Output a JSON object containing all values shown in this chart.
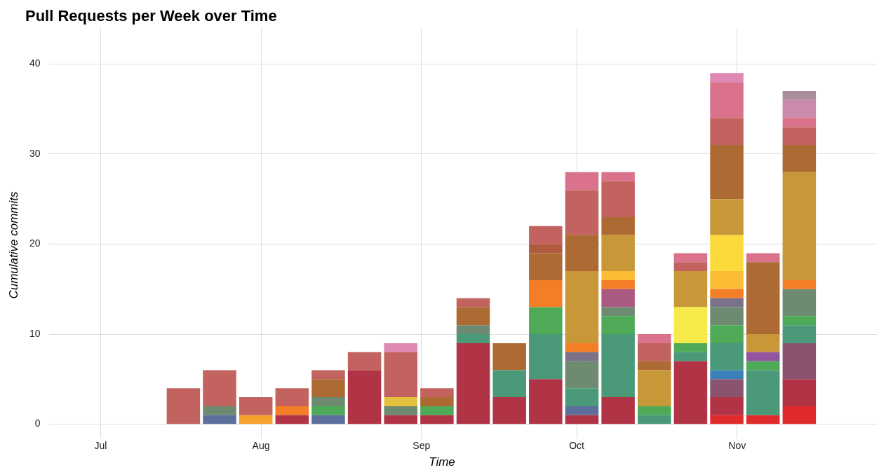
{
  "chart_data": {
    "type": "bar",
    "stacked": true,
    "title": "Pull Requests per Week over Time",
    "xlabel": "Time",
    "ylabel": "Cumulative commits",
    "x": [
      "--07-17",
      "--07-24",
      "--07-31",
      "--08-07",
      "--08-14",
      "--08-21",
      "--08-28",
      "--09-04",
      "--09-11",
      "--09-18",
      "--09-25",
      "--10-02",
      "--10-09",
      "--10-16",
      "--10-23",
      "--10-30",
      "--11-06",
      "--11-13"
    ],
    "xlim": [
      "--06-21",
      "--11-28"
    ],
    "xticks": [
      {
        "value": "--07-01",
        "label": "Jul"
      },
      {
        "value": "--08-01",
        "label": "Aug"
      },
      {
        "value": "--09-01",
        "label": "Sep"
      },
      {
        "value": "--10-01",
        "label": "Oct"
      },
      {
        "value": "--11-01",
        "label": "Nov"
      }
    ],
    "ylim": [
      -1.6,
      44
    ],
    "yticks": [
      0,
      10,
      20,
      30,
      40
    ],
    "grid": true,
    "legend": false,
    "series": [
      {
        "color": "#e02a2c",
        "values": [
          null,
          null,
          null,
          null,
          null,
          null,
          null,
          null,
          null,
          null,
          null,
          null,
          null,
          null,
          null,
          1,
          1,
          2
        ]
      },
      {
        "color": "#b03346",
        "values": [
          null,
          null,
          null,
          1,
          null,
          6,
          1,
          1,
          9,
          3,
          5,
          1,
          3,
          null,
          7,
          2,
          null,
          3
        ]
      },
      {
        "color": "#8a5370",
        "values": [
          null,
          null,
          null,
          null,
          null,
          null,
          null,
          null,
          null,
          null,
          null,
          null,
          null,
          null,
          null,
          2,
          null,
          4
        ]
      },
      {
        "color": "#5b6e9c",
        "values": [
          null,
          1,
          null,
          null,
          1,
          null,
          null,
          null,
          null,
          null,
          null,
          1,
          null,
          null,
          null,
          null,
          null,
          null
        ]
      },
      {
        "color": "#3a80b8",
        "values": [
          null,
          null,
          null,
          null,
          null,
          null,
          null,
          null,
          null,
          null,
          null,
          null,
          null,
          null,
          null,
          1,
          null,
          null
        ]
      },
      {
        "color": "#4a9a7a",
        "values": [
          null,
          null,
          null,
          null,
          null,
          null,
          null,
          null,
          1,
          3,
          5,
          2,
          7,
          1,
          1,
          3,
          5,
          2
        ]
      },
      {
        "color": "#4faa57",
        "values": [
          null,
          null,
          null,
          null,
          1,
          null,
          null,
          1,
          null,
          null,
          3,
          null,
          2,
          1,
          1,
          2,
          1,
          1
        ]
      },
      {
        "color": "#9354a0",
        "values": [
          null,
          null,
          null,
          null,
          null,
          null,
          null,
          null,
          null,
          null,
          null,
          null,
          null,
          null,
          null,
          null,
          1,
          null
        ]
      },
      {
        "color": "#6e8a70",
        "values": [
          null,
          1,
          null,
          null,
          1,
          null,
          1,
          null,
          1,
          null,
          null,
          3,
          1,
          null,
          null,
          2,
          null,
          3
        ]
      },
      {
        "color": "#7b7289",
        "values": [
          null,
          null,
          null,
          null,
          null,
          null,
          null,
          null,
          null,
          null,
          null,
          1,
          null,
          null,
          null,
          1,
          null,
          null
        ]
      },
      {
        "color": "#aa5a80",
        "values": [
          null,
          null,
          null,
          null,
          null,
          null,
          null,
          null,
          null,
          null,
          null,
          null,
          2,
          null,
          null,
          null,
          null,
          null
        ]
      },
      {
        "color": "#f47e26",
        "values": [
          null,
          null,
          null,
          1,
          null,
          null,
          null,
          null,
          null,
          null,
          3,
          1,
          1,
          null,
          null,
          1,
          null,
          1
        ]
      },
      {
        "color": "#f7a12d",
        "values": [
          null,
          null,
          1,
          null,
          null,
          null,
          null,
          null,
          null,
          null,
          null,
          null,
          null,
          null,
          null,
          null,
          null,
          null
        ]
      },
      {
        "color": "#fbbc36",
        "values": [
          null,
          null,
          null,
          null,
          null,
          null,
          null,
          null,
          null,
          null,
          null,
          null,
          1,
          null,
          null,
          2,
          null,
          null
        ]
      },
      {
        "color": "#e4c240",
        "values": [
          null,
          null,
          null,
          null,
          null,
          null,
          1,
          null,
          null,
          null,
          null,
          null,
          null,
          null,
          null,
          null,
          null,
          null
        ]
      },
      {
        "color": "#f6ea4a",
        "values": [
          null,
          null,
          null,
          null,
          null,
          null,
          null,
          null,
          null,
          null,
          null,
          null,
          null,
          null,
          4,
          null,
          null,
          null
        ]
      },
      {
        "color": "#fdda3c",
        "values": [
          null,
          null,
          null,
          null,
          null,
          null,
          null,
          null,
          null,
          null,
          null,
          null,
          null,
          null,
          null,
          4,
          null,
          null
        ]
      },
      {
        "color": "#c89838",
        "values": [
          null,
          null,
          null,
          null,
          null,
          null,
          null,
          null,
          null,
          null,
          null,
          8,
          4,
          4,
          4,
          4,
          2,
          12
        ]
      },
      {
        "color": "#ad6a32",
        "values": [
          null,
          null,
          null,
          null,
          2,
          null,
          null,
          1,
          2,
          3,
          3,
          4,
          2,
          1,
          null,
          6,
          8,
          3
        ]
      },
      {
        "color": "#b05a3e",
        "values": [
          null,
          null,
          null,
          null,
          null,
          null,
          null,
          null,
          null,
          null,
          1,
          null,
          null,
          null,
          null,
          null,
          null,
          null
        ]
      },
      {
        "color": "#c2635f",
        "values": [
          4,
          4,
          2,
          2,
          1,
          2,
          5,
          1,
          1,
          null,
          2,
          5,
          4,
          2,
          1,
          3,
          null,
          2
        ]
      },
      {
        "color": "#d9728a",
        "values": [
          null,
          null,
          null,
          null,
          null,
          null,
          null,
          null,
          null,
          null,
          null,
          2,
          1,
          1,
          1,
          4,
          1,
          1
        ]
      },
      {
        "color": "#e088b4",
        "values": [
          null,
          null,
          null,
          null,
          null,
          null,
          1,
          null,
          null,
          null,
          null,
          null,
          null,
          null,
          null,
          1,
          null,
          null
        ]
      },
      {
        "color": "#c98aab",
        "values": [
          null,
          null,
          null,
          null,
          null,
          null,
          null,
          null,
          null,
          null,
          null,
          null,
          null,
          null,
          null,
          null,
          null,
          2
        ]
      },
      {
        "color": "#a98f9b",
        "values": [
          null,
          null,
          null,
          null,
          null,
          null,
          null,
          null,
          null,
          null,
          null,
          null,
          null,
          null,
          null,
          null,
          null,
          1
        ]
      }
    ]
  }
}
